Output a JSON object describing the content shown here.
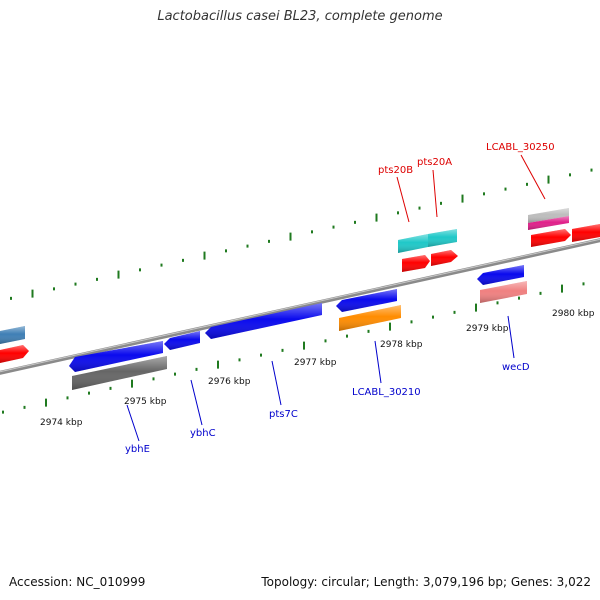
{
  "title": "Lactobacillus casei BL23, complete genome",
  "footer": {
    "accession": "Accession: NC_010999",
    "topology": "Topology: circular; Length: 3,079,196 bp; Genes: 3,022"
  },
  "colors": {
    "backbone": "#8a8a8a",
    "tick": "#1f7a1f",
    "minus_label": "#0000cc",
    "plus_label": "#dd0000",
    "blue": "#0a0aee",
    "red": "#ff0000",
    "gray": "#666666",
    "orange": "#ff8c00",
    "cyan": "#1fc8c8",
    "pink": "#f08080",
    "magenta": "#e0208a",
    "lightgray": "#bdbdbd",
    "steelblue": "#3f7fb5"
  },
  "scale_labels": [
    {
      "id": "2974",
      "text": "2974 kbp"
    },
    {
      "id": "2975",
      "text": "2975 kbp"
    },
    {
      "id": "2976",
      "text": "2976 kbp"
    },
    {
      "id": "2977",
      "text": "2977 kbp"
    },
    {
      "id": "2978",
      "text": "2978 kbp"
    },
    {
      "id": "2979",
      "text": "2979 kbp"
    },
    {
      "id": "2980",
      "text": "2980 kbp"
    }
  ],
  "gene_labels": [
    {
      "id": "ybhE",
      "text": "ybhE",
      "strand": "minus"
    },
    {
      "id": "ybhC",
      "text": "ybhC",
      "strand": "minus"
    },
    {
      "id": "pts7C",
      "text": "pts7C",
      "strand": "minus"
    },
    {
      "id": "LCABL_30210",
      "text": "LCABL_30210",
      "strand": "minus"
    },
    {
      "id": "wecD",
      "text": "wecD",
      "strand": "minus"
    },
    {
      "id": "pts20B",
      "text": "pts20B",
      "strand": "plus"
    },
    {
      "id": "pts20A",
      "text": "pts20A",
      "strand": "plus"
    },
    {
      "id": "LCABL_30250",
      "text": "LCABL_30250",
      "strand": "plus"
    }
  ]
}
